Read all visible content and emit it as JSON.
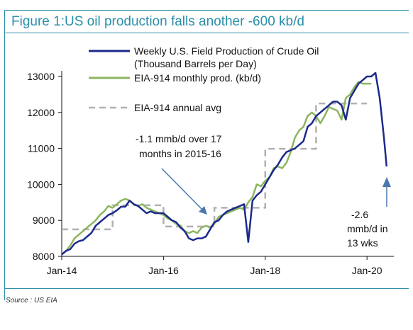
{
  "title": "Figure 1:US oil production falls another -600 kb/d",
  "source": "Source : US EIA",
  "colors": {
    "weekly": "#1b2a8c",
    "monthly": "#8db55e",
    "annual": "#b0b0b0",
    "arrow": "#4a78b0",
    "frame": "#2a8fa8"
  },
  "chart_data": {
    "type": "line",
    "title": "Figure 1:US oil production falls another -600 kb/d",
    "xlabel": "",
    "ylabel": "",
    "xlim": [
      "2014-01",
      "2020-05"
    ],
    "ylim": [
      8000,
      13000
    ],
    "x_ticks": [
      "Jan-14",
      "Jan-16",
      "Jan-18",
      "Jan-20"
    ],
    "y_ticks": [
      "8000",
      "9000",
      "10000",
      "11000",
      "12000",
      "13000"
    ],
    "grid": false,
    "legend_position": "top",
    "series": [
      {
        "name": "Weekly U.S. Field Production of Crude Oil (Thousand Barrels per Day)",
        "style": "solid-dark-blue",
        "points": [
          [
            "2014-01",
            8050
          ],
          [
            "2014-02",
            8150
          ],
          [
            "2014-03",
            8200
          ],
          [
            "2014-04",
            8350
          ],
          [
            "2014-05",
            8420
          ],
          [
            "2014-06",
            8450
          ],
          [
            "2014-07",
            8550
          ],
          [
            "2014-08",
            8650
          ],
          [
            "2014-09",
            8850
          ],
          [
            "2014-10",
            8950
          ],
          [
            "2014-11",
            9050
          ],
          [
            "2014-12",
            9150
          ],
          [
            "2015-01",
            9200
          ],
          [
            "2015-02",
            9280
          ],
          [
            "2015-03",
            9380
          ],
          [
            "2015-04",
            9380
          ],
          [
            "2015-05",
            9550
          ],
          [
            "2015-06",
            9450
          ],
          [
            "2015-07",
            9400
          ],
          [
            "2015-08",
            9300
          ],
          [
            "2015-09",
            9200
          ],
          [
            "2015-10",
            9250
          ],
          [
            "2015-11",
            9200
          ],
          [
            "2015-12",
            9200
          ],
          [
            "2016-01",
            9200
          ],
          [
            "2016-02",
            9100
          ],
          [
            "2016-03",
            9000
          ],
          [
            "2016-04",
            8950
          ],
          [
            "2016-05",
            8800
          ],
          [
            "2016-06",
            8700
          ],
          [
            "2016-07",
            8500
          ],
          [
            "2016-08",
            8450
          ],
          [
            "2016-09",
            8500
          ],
          [
            "2016-10",
            8500
          ],
          [
            "2016-11",
            8550
          ],
          [
            "2016-12",
            8750
          ],
          [
            "2017-01",
            8950
          ],
          [
            "2017-02",
            9000
          ],
          [
            "2017-03",
            9150
          ],
          [
            "2017-04",
            9250
          ],
          [
            "2017-05",
            9300
          ],
          [
            "2017-06",
            9350
          ],
          [
            "2017-07",
            9400
          ],
          [
            "2017-08",
            9450
          ],
          [
            "2017-09",
            8400
          ],
          [
            "2017-10",
            9550
          ],
          [
            "2017-11",
            9700
          ],
          [
            "2017-12",
            9800
          ],
          [
            "2018-01",
            10000
          ],
          [
            "2018-02",
            10200
          ],
          [
            "2018-03",
            10400
          ],
          [
            "2018-04",
            10550
          ],
          [
            "2018-05",
            10750
          ],
          [
            "2018-06",
            10900
          ],
          [
            "2018-07",
            10950
          ],
          [
            "2018-08",
            11000
          ],
          [
            "2018-09",
            11100
          ],
          [
            "2018-10",
            11200
          ],
          [
            "2018-11",
            11600
          ],
          [
            "2018-12",
            11700
          ],
          [
            "2019-01",
            11900
          ],
          [
            "2019-02",
            12000
          ],
          [
            "2019-03",
            12100
          ],
          [
            "2019-04",
            12200
          ],
          [
            "2019-05",
            12300
          ],
          [
            "2019-06",
            12300
          ],
          [
            "2019-07",
            12200
          ],
          [
            "2019-08",
            11800
          ],
          [
            "2019-09",
            12400
          ],
          [
            "2019-10",
            12600
          ],
          [
            "2019-11",
            12800
          ],
          [
            "2019-12",
            12900
          ],
          [
            "2020-01",
            13000
          ],
          [
            "2020-02",
            13000
          ],
          [
            "2020-03",
            13100
          ],
          [
            "2020-04",
            12400
          ],
          [
            "2020-05",
            11300
          ],
          [
            "2020-05-20",
            10500
          ]
        ]
      },
      {
        "name": "EIA-914 monthly prod. (kb/d)",
        "style": "solid-green",
        "points": [
          [
            "2014-01",
            8050
          ],
          [
            "2014-02",
            8150
          ],
          [
            "2014-03",
            8300
          ],
          [
            "2014-04",
            8500
          ],
          [
            "2014-05",
            8600
          ],
          [
            "2014-06",
            8700
          ],
          [
            "2014-07",
            8800
          ],
          [
            "2014-08",
            8900
          ],
          [
            "2014-09",
            9000
          ],
          [
            "2014-10",
            9150
          ],
          [
            "2014-11",
            9250
          ],
          [
            "2014-12",
            9400
          ],
          [
            "2015-01",
            9350
          ],
          [
            "2015-02",
            9450
          ],
          [
            "2015-03",
            9550
          ],
          [
            "2015-04",
            9600
          ],
          [
            "2015-05",
            9550
          ],
          [
            "2015-06",
            9450
          ],
          [
            "2015-07",
            9400
          ],
          [
            "2015-08",
            9450
          ],
          [
            "2015-09",
            9350
          ],
          [
            "2015-10",
            9300
          ],
          [
            "2015-11",
            9250
          ],
          [
            "2015-12",
            9200
          ],
          [
            "2016-01",
            9150
          ],
          [
            "2016-02",
            9050
          ],
          [
            "2016-03",
            9000
          ],
          [
            "2016-04",
            8900
          ],
          [
            "2016-05",
            8850
          ],
          [
            "2016-06",
            8700
          ],
          [
            "2016-07",
            8650
          ],
          [
            "2016-08",
            8700
          ],
          [
            "2016-09",
            8650
          ],
          [
            "2016-10",
            8800
          ],
          [
            "2016-11",
            8850
          ],
          [
            "2016-12",
            8800
          ],
          [
            "2017-01",
            8900
          ],
          [
            "2017-02",
            9100
          ],
          [
            "2017-03",
            9150
          ],
          [
            "2017-04",
            9200
          ],
          [
            "2017-05",
            9250
          ],
          [
            "2017-06",
            9300
          ],
          [
            "2017-07",
            9350
          ],
          [
            "2017-08",
            9300
          ],
          [
            "2017-09",
            9500
          ],
          [
            "2017-10",
            9650
          ],
          [
            "2017-11",
            10000
          ],
          [
            "2017-12",
            9950
          ],
          [
            "2018-01",
            10100
          ],
          [
            "2018-02",
            10200
          ],
          [
            "2018-03",
            10450
          ],
          [
            "2018-04",
            10500
          ],
          [
            "2018-05",
            10450
          ],
          [
            "2018-06",
            10600
          ],
          [
            "2018-07",
            10900
          ],
          [
            "2018-08",
            11300
          ],
          [
            "2018-09",
            11500
          ],
          [
            "2018-10",
            11600
          ],
          [
            "2018-11",
            11900
          ],
          [
            "2018-12",
            12000
          ],
          [
            "2019-01",
            11900
          ],
          [
            "2019-02",
            11700
          ],
          [
            "2019-03",
            11900
          ],
          [
            "2019-04",
            12150
          ],
          [
            "2019-05",
            12100
          ],
          [
            "2019-06",
            12050
          ],
          [
            "2019-07",
            11800
          ],
          [
            "2019-08",
            12400
          ],
          [
            "2019-09",
            12500
          ],
          [
            "2019-10",
            12700
          ],
          [
            "2019-11",
            12850
          ],
          [
            "2019-12",
            12800
          ],
          [
            "2020-01",
            12800
          ],
          [
            "2020-02",
            12800
          ]
        ]
      },
      {
        "name": "EIA-914 annual avg",
        "style": "dashed-grey",
        "steps": [
          {
            "from": "2014-01",
            "to": "2015-01",
            "value": 8750
          },
          {
            "from": "2015-01",
            "to": "2016-01",
            "value": 9420
          },
          {
            "from": "2016-01",
            "to": "2017-01",
            "value": 8830
          },
          {
            "from": "2017-01",
            "to": "2018-01",
            "value": 9350
          },
          {
            "from": "2018-01",
            "to": "2019-01",
            "value": 10990
          },
          {
            "from": "2019-01",
            "to": "2020-01",
            "value": 12250
          }
        ]
      }
    ],
    "annotations": [
      {
        "lines": [
          "-1.1 mmb/d over 17",
          "months in 2015-16"
        ]
      },
      {
        "lines": [
          "-2.6",
          "mmb/d in",
          "13 wks"
        ]
      }
    ]
  }
}
